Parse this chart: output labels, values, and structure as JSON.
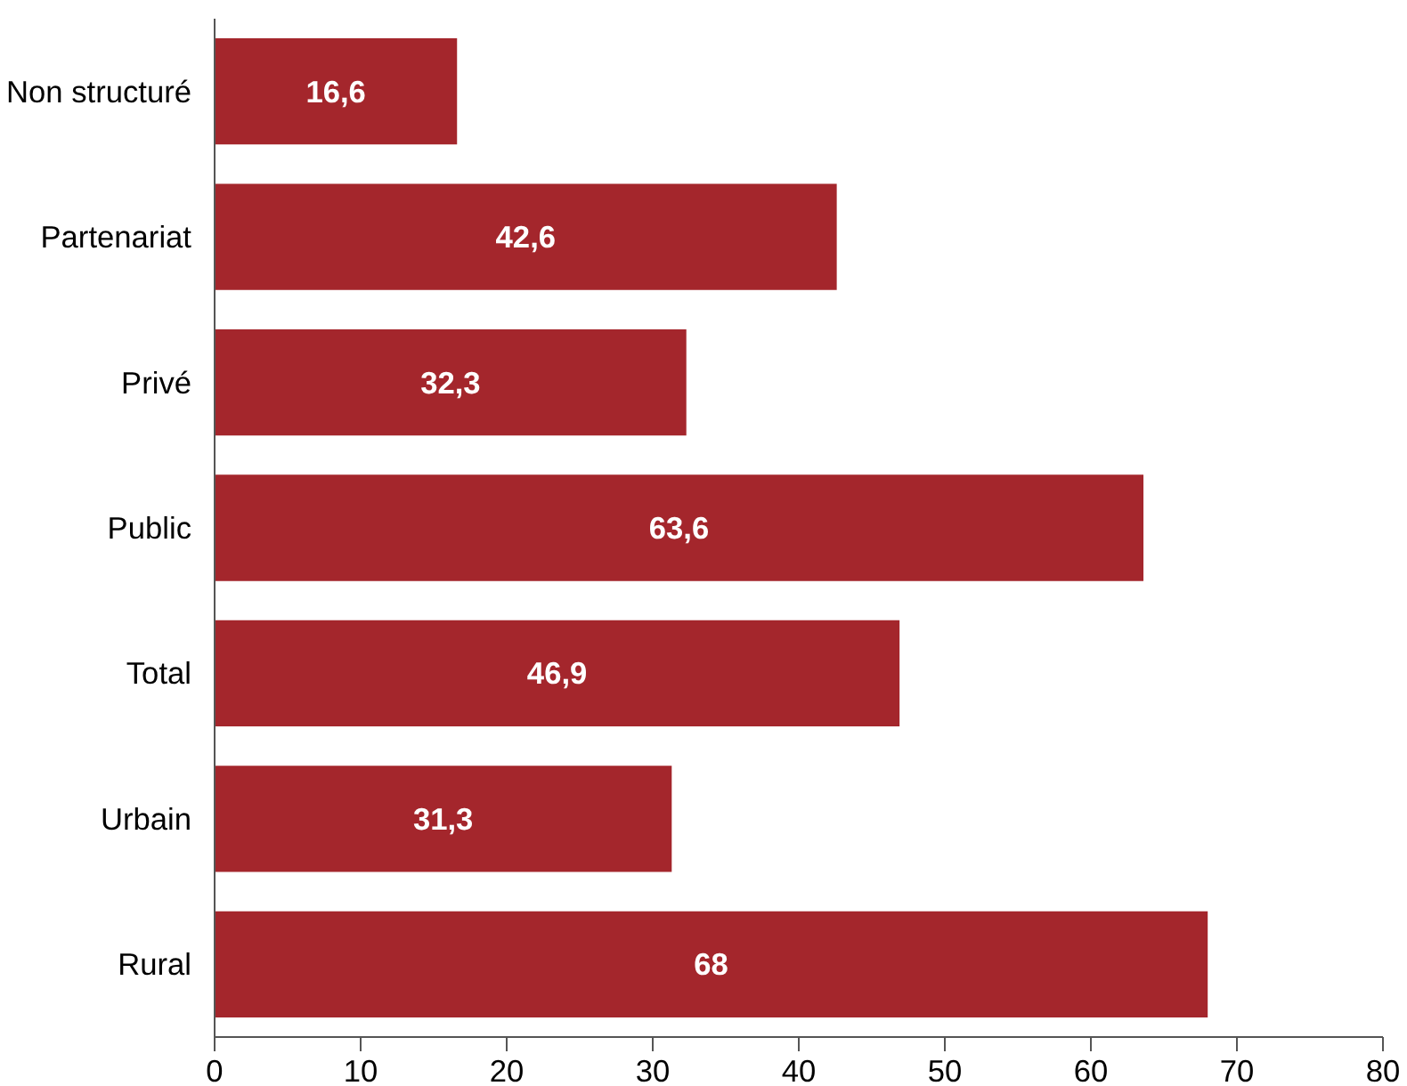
{
  "chart_data": {
    "type": "bar",
    "orientation": "horizontal",
    "categories": [
      "Non structuré",
      "Partenariat",
      "Privé",
      "Public",
      "Total",
      "Urbain",
      "Rural"
    ],
    "values": [
      16.6,
      42.6,
      32.3,
      63.6,
      46.9,
      31.3,
      68
    ],
    "value_labels": [
      "16,6",
      "42,6",
      "32,3",
      "63,6",
      "46,9",
      "31,3",
      "68"
    ],
    "color": "#a4262c",
    "xlim": [
      0,
      80
    ],
    "xticks": [
      0,
      10,
      20,
      30,
      40,
      50,
      60,
      70,
      80
    ]
  }
}
